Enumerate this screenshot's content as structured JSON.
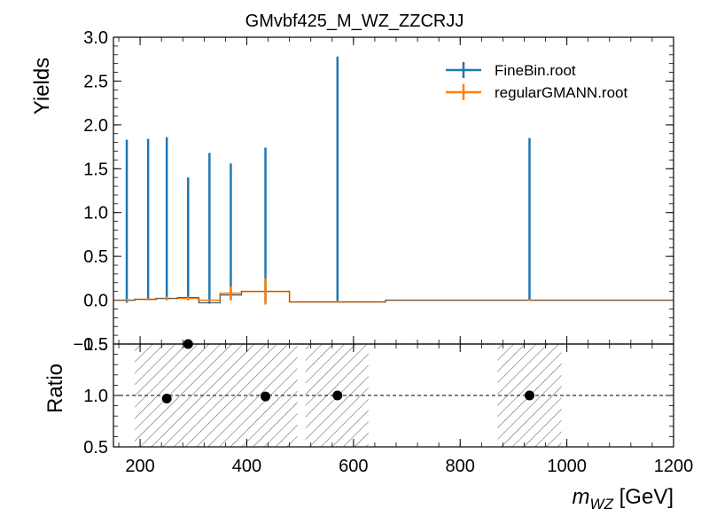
{
  "chart_data": [
    {
      "type": "line",
      "title": "GMvbf425_M_WZ_ZZCRJJ",
      "ylabel": "Yields",
      "xlim": [
        150,
        1200
      ],
      "ylim": [
        -0.5,
        3.0
      ],
      "yticks": [
        "−0.5",
        "0.0",
        "0.5",
        "1.0",
        "1.5",
        "2.0",
        "2.5",
        "3.0"
      ],
      "legend_position": "top-right",
      "series": [
        {
          "name": "FineBin.root",
          "color": "#1f77b4",
          "points": [
            {
              "x": 175,
              "y": 0.9,
              "yerr": 0.93
            },
            {
              "x": 215,
              "y": 0.92,
              "yerr": 0.92
            },
            {
              "x": 250,
              "y": 0.93,
              "yerr": 0.93
            },
            {
              "x": 290,
              "y": 0.7,
              "yerr": 0.7
            },
            {
              "x": 330,
              "y": 0.82,
              "yerr": 0.86
            },
            {
              "x": 370,
              "y": 0.78,
              "yerr": 0.78
            },
            {
              "x": 435,
              "y": 0.86,
              "yerr": 0.88
            },
            {
              "x": 570,
              "y": 1.38,
              "yerr": 1.4
            },
            {
              "x": 930,
              "y": 0.92,
              "yerr": 0.93
            }
          ],
          "step": [
            {
              "x0": 150,
              "x1": 190,
              "y": 0.0
            },
            {
              "x0": 190,
              "x1": 230,
              "y": 0.01
            },
            {
              "x0": 230,
              "x1": 270,
              "y": 0.02
            },
            {
              "x0": 270,
              "x1": 310,
              "y": 0.03
            },
            {
              "x0": 310,
              "x1": 350,
              "y": -0.03
            },
            {
              "x0": 350,
              "x1": 390,
              "y": 0.06
            },
            {
              "x0": 390,
              "x1": 480,
              "y": 0.1
            },
            {
              "x0": 480,
              "x1": 660,
              "y": -0.02
            },
            {
              "x0": 660,
              "x1": 1200,
              "y": 0.0
            }
          ]
        },
        {
          "name": "regularGMANN.root",
          "color": "#ff7f0e",
          "points": [
            {
              "x": 175,
              "y": 0.0,
              "yerr": 0.01
            },
            {
              "x": 215,
              "y": 0.01,
              "yerr": 0.01
            },
            {
              "x": 250,
              "y": 0.02,
              "yerr": 0.02
            },
            {
              "x": 290,
              "y": 0.02,
              "yerr": 0.02
            },
            {
              "x": 330,
              "y": 0.0,
              "yerr": 0.01
            },
            {
              "x": 370,
              "y": 0.08,
              "yerr": 0.08
            },
            {
              "x": 435,
              "y": 0.1,
              "yerr": 0.15
            },
            {
              "x": 570,
              "y": -0.02,
              "yerr": 0.01
            },
            {
              "x": 930,
              "y": 0.0,
              "yerr": 0.01
            }
          ],
          "step": [
            {
              "x0": 150,
              "x1": 190,
              "y": 0.0
            },
            {
              "x0": 190,
              "x1": 230,
              "y": 0.01
            },
            {
              "x0": 230,
              "x1": 270,
              "y": 0.02
            },
            {
              "x0": 270,
              "x1": 310,
              "y": 0.02
            },
            {
              "x0": 310,
              "x1": 350,
              "y": 0.0
            },
            {
              "x0": 350,
              "x1": 390,
              "y": 0.08
            },
            {
              "x0": 390,
              "x1": 480,
              "y": 0.1
            },
            {
              "x0": 480,
              "x1": 660,
              "y": -0.02
            },
            {
              "x0": 660,
              "x1": 1200,
              "y": 0.0
            }
          ]
        }
      ]
    },
    {
      "type": "scatter",
      "ylabel": "Ratio",
      "xlabel_main": "m",
      "xlabel_sub": "WZ",
      "xlabel_unit": " [GeV]",
      "xlim": [
        150,
        1200
      ],
      "ylim": [
        0.5,
        1.5
      ],
      "xticks": [
        "200",
        "400",
        "600",
        "800",
        "1000",
        "1200"
      ],
      "yticks": [
        "0.5",
        "1.0",
        "1.5"
      ],
      "reference_line": 1.0,
      "uncertainty_bands": [
        {
          "x0": 190,
          "x1": 495
        },
        {
          "x0": 510,
          "x1": 628
        },
        {
          "x0": 870,
          "x1": 990
        }
      ],
      "points": [
        {
          "x": 250,
          "y": 0.97
        },
        {
          "x": 290,
          "y": 1.5
        },
        {
          "x": 435,
          "y": 0.99
        },
        {
          "x": 570,
          "y": 1.0
        },
        {
          "x": 930,
          "y": 1.0
        }
      ]
    }
  ]
}
